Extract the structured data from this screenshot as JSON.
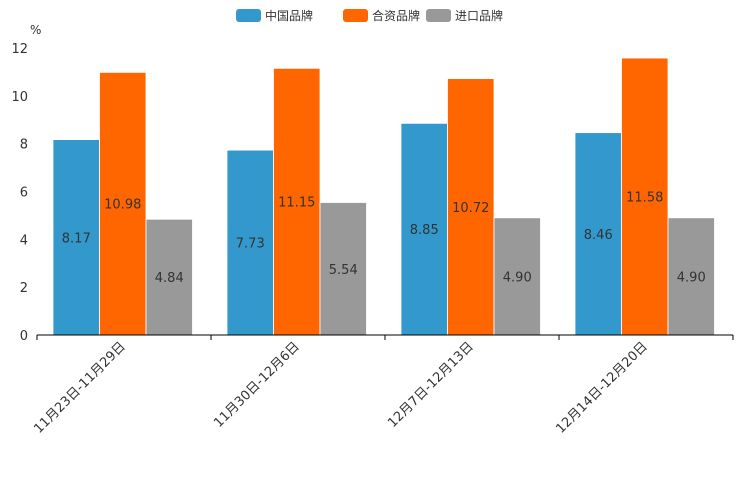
{
  "chart_data": {
    "type": "bar",
    "title": "",
    "xlabel": "",
    "ylabel": "%",
    "ylim": [
      0,
      12
    ],
    "yticks": [
      0,
      2,
      4,
      6,
      8,
      10,
      12
    ],
    "grid": false,
    "legend_position": "top-center",
    "categories": [
      "11月23日-11月29日",
      "11月30日-12月6日",
      "12月7日-12月13日",
      "12月14日-12月20日"
    ],
    "series": [
      {
        "name": "中国品牌",
        "color": "#3399cc",
        "values": [
          8.17,
          7.73,
          8.85,
          8.46
        ],
        "labels": [
          "8.17",
          "7.73",
          "8.85",
          "8.46"
        ]
      },
      {
        "name": "合资品牌",
        "color": "#ff6600",
        "values": [
          10.98,
          11.15,
          10.72,
          11.58
        ],
        "labels": [
          "10.98",
          "11.15",
          "10.72",
          "11.58"
        ]
      },
      {
        "name": "进口品牌",
        "color": "#999999",
        "values": [
          4.84,
          5.54,
          4.9,
          4.9
        ],
        "labels": [
          "4.84",
          "5.54",
          "4.90",
          "4.90"
        ]
      }
    ]
  }
}
